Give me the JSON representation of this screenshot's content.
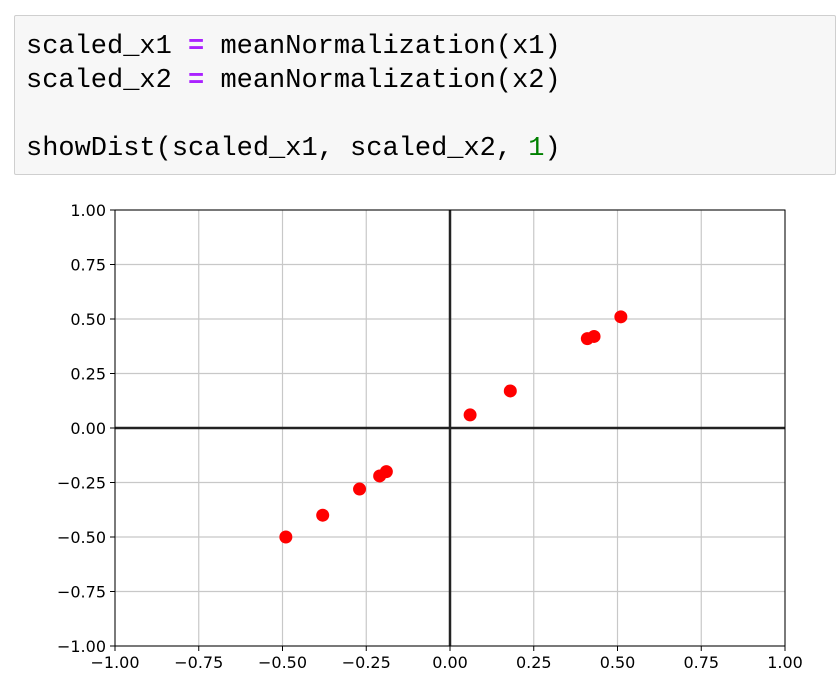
{
  "code": {
    "line1": {
      "var": "scaled_x1",
      "op": "=",
      "call": "meanNormalization(x1)"
    },
    "line2": {
      "var": "scaled_x2",
      "op": "=",
      "call": "meanNormalization(x2)"
    },
    "line3": {
      "prefix": "showDist(scaled_x1, scaled_x2, ",
      "arg": "1",
      "suffix": ")"
    }
  },
  "chart_data": {
    "type": "scatter",
    "title": "",
    "xlabel": "",
    "ylabel": "",
    "xlim": [
      -1.0,
      1.0
    ],
    "ylim": [
      -1.0,
      1.0
    ],
    "x_ticks": [
      "−1.00",
      "−0.75",
      "−0.50",
      "−0.25",
      "0.00",
      "0.25",
      "0.50",
      "0.75",
      "1.00"
    ],
    "y_ticks": [
      "1.00",
      "0.75",
      "0.50",
      "0.25",
      "0.00",
      "−0.25",
      "−0.50",
      "−0.75",
      "−1.00"
    ],
    "grid": true,
    "axes_lines_at_zero": true,
    "marker_color": "#ff0000",
    "series": [
      {
        "points": [
          {
            "x": -0.49,
            "y": -0.5
          },
          {
            "x": -0.38,
            "y": -0.4
          },
          {
            "x": -0.27,
            "y": -0.28
          },
          {
            "x": -0.21,
            "y": -0.22
          },
          {
            "x": -0.19,
            "y": -0.2
          },
          {
            "x": 0.06,
            "y": 0.06
          },
          {
            "x": 0.18,
            "y": 0.17
          },
          {
            "x": 0.41,
            "y": 0.41
          },
          {
            "x": 0.43,
            "y": 0.42
          },
          {
            "x": 0.51,
            "y": 0.51
          }
        ]
      }
    ]
  }
}
